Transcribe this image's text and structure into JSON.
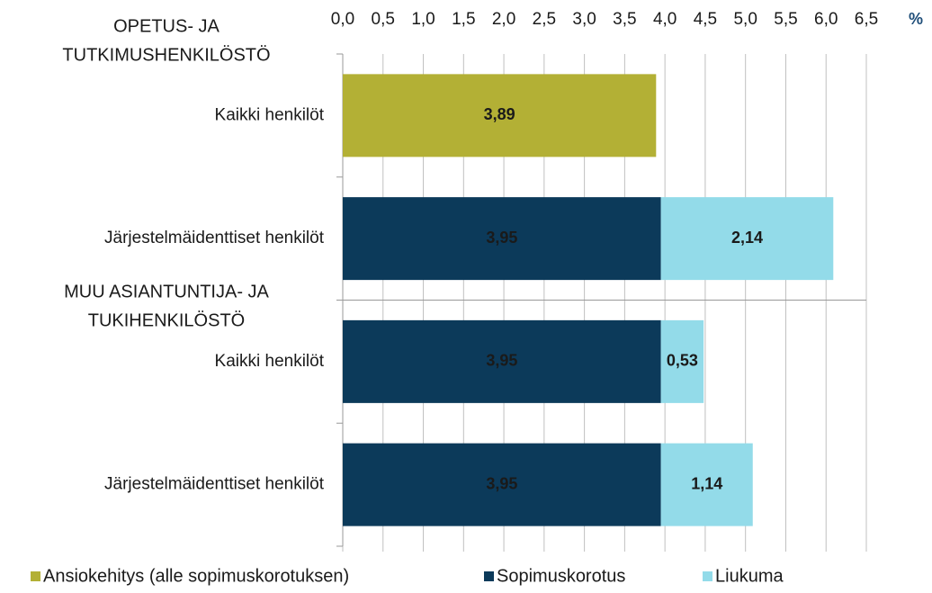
{
  "chart_data": {
    "type": "stacked_barh",
    "unit_label": "%",
    "groups": [
      [
        "OPETUS- JA",
        "TUTKIMUSHENKILÖSTÖ"
      ],
      [
        "MUU ASIANTUNTIJA-  JA",
        "TUKIHENKILÖSTÖ"
      ]
    ],
    "categories": [
      "Kaikki henkilöt",
      "Järjestelmäidenttiset henkilöt",
      "Kaikki henkilöt",
      "Järjestelmäidenttiset henkilöt"
    ],
    "series": [
      {
        "name": "Ansiokehitys (alle sopimuskorotuksen)",
        "color": "#b3b035",
        "label_color": "#1a1a1a",
        "values": [
          3.89,
          null,
          null,
          null
        ],
        "value_labels": [
          "3,89",
          null,
          null,
          null
        ]
      },
      {
        "name": "Sopimuskorotus",
        "color": "#0c3a5a",
        "label_color": "#ffffff",
        "values": [
          null,
          3.95,
          3.95,
          3.95
        ],
        "value_labels": [
          null,
          "3,95",
          "3,95",
          "3,95"
        ]
      },
      {
        "name": "Liukuma",
        "color": "#93dbe9",
        "label_color": "#0c3a5a",
        "values": [
          null,
          2.14,
          0.53,
          1.14
        ],
        "value_labels": [
          null,
          "2,14",
          "0,53",
          "1,14"
        ]
      }
    ],
    "xlim": [
      0,
      6.5
    ],
    "xticks": [
      {
        "value": 0,
        "label": "0,0"
      },
      {
        "value": 0.5,
        "label": "0,5"
      },
      {
        "value": 1,
        "label": "1,0"
      },
      {
        "value": 1.5,
        "label": "1,5"
      },
      {
        "value": 2,
        "label": "2,0"
      },
      {
        "value": 2.5,
        "label": "2,5"
      },
      {
        "value": 3,
        "label": "3,0"
      },
      {
        "value": 3.5,
        "label": "3,5"
      },
      {
        "value": 4,
        "label": "4,0"
      },
      {
        "value": 4.5,
        "label": "4,5"
      },
      {
        "value": 5,
        "label": "5,0"
      },
      {
        "value": 5.5,
        "label": "5,5"
      },
      {
        "value": 6,
        "label": "6,0"
      },
      {
        "value": 6.5,
        "label": "6,5"
      }
    ],
    "grid": true
  }
}
